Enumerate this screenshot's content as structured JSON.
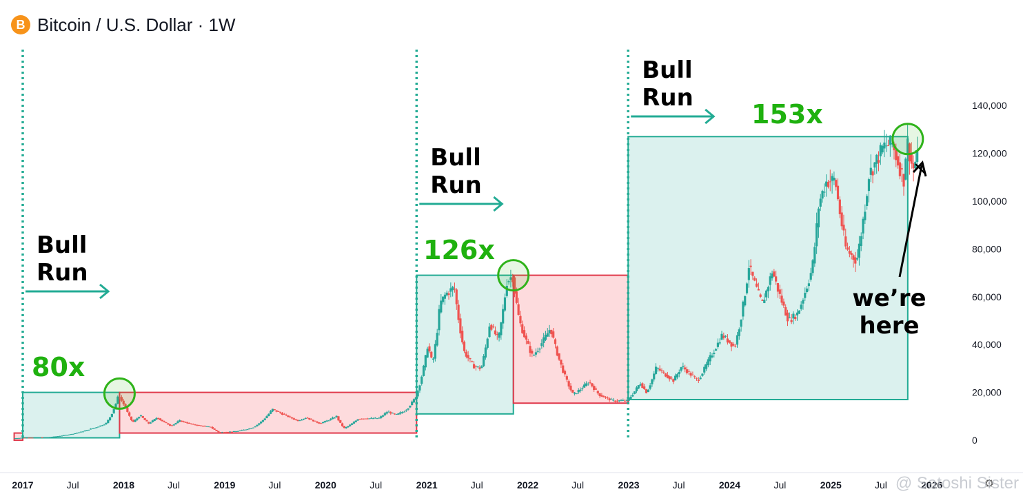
{
  "header": {
    "title": "Bitcoin / U.S. Dollar · 1W",
    "logo_glyph": "B",
    "logo_color": "#f7931a"
  },
  "watermark": "@ Satoshi Sister",
  "colors": {
    "bull": "#22ab94",
    "bull_fill": "rgba(34,171,148,0.16)",
    "bear": "#e03a4c",
    "bear_fill": "rgba(242,54,69,0.18)",
    "green_text": "#1fb10f",
    "circle": "#2fb31a"
  },
  "chart_data": {
    "type": "candlestick",
    "title": "Bitcoin / U.S. Dollar · 1W",
    "ylim": [
      -3000,
      147000
    ],
    "y_ticks": [
      0,
      20000,
      40000,
      60000,
      80000,
      100000,
      120000,
      140000
    ],
    "y_tick_labels": [
      "0",
      "20,000",
      "40,000",
      "60,000",
      "80,000",
      "100,000",
      "120,000",
      "140,000"
    ],
    "x_range": [
      "2017-01-01",
      "2026-02-28"
    ],
    "x_ticks": [
      {
        "date": "2017-01-01",
        "label": "2017",
        "bold": true
      },
      {
        "date": "2017-07-01",
        "label": "Jul",
        "bold": false
      },
      {
        "date": "2018-01-01",
        "label": "2018",
        "bold": true
      },
      {
        "date": "2018-07-01",
        "label": "Jul",
        "bold": false
      },
      {
        "date": "2019-01-01",
        "label": "2019",
        "bold": true
      },
      {
        "date": "2019-07-01",
        "label": "Jul",
        "bold": false
      },
      {
        "date": "2020-01-01",
        "label": "2020",
        "bold": true
      },
      {
        "date": "2020-07-01",
        "label": "Jul",
        "bold": false
      },
      {
        "date": "2021-01-01",
        "label": "2021",
        "bold": true
      },
      {
        "date": "2021-07-01",
        "label": "Jul",
        "bold": false
      },
      {
        "date": "2022-01-01",
        "label": "2022",
        "bold": true
      },
      {
        "date": "2022-07-01",
        "label": "Jul",
        "bold": false
      },
      {
        "date": "2023-01-01",
        "label": "2023",
        "bold": true
      },
      {
        "date": "2023-07-01",
        "label": "Jul",
        "bold": false
      },
      {
        "date": "2024-01-01",
        "label": "2024",
        "bold": true
      },
      {
        "date": "2024-07-01",
        "label": "Jul",
        "bold": false
      },
      {
        "date": "2025-01-01",
        "label": "2025",
        "bold": true
      },
      {
        "date": "2025-07-01",
        "label": "Jul",
        "bold": false
      },
      {
        "date": "2026-01-01",
        "label": "2026",
        "bold": true
      }
    ],
    "price_path": [
      [
        "2016-12-01",
        800
      ],
      [
        "2017-01-01",
        1000
      ],
      [
        "2017-04-01",
        1200
      ],
      [
        "2017-07-01",
        2600
      ],
      [
        "2017-09-01",
        4500
      ],
      [
        "2017-11-01",
        7000
      ],
      [
        "2017-12-17",
        19000
      ],
      [
        "2018-01-10",
        14000
      ],
      [
        "2018-02-06",
        7500
      ],
      [
        "2018-03-05",
        10500
      ],
      [
        "2018-04-05",
        7000
      ],
      [
        "2018-05-05",
        9500
      ],
      [
        "2018-06-25",
        6000
      ],
      [
        "2018-07-25",
        8200
      ],
      [
        "2018-09-15",
        6500
      ],
      [
        "2018-11-15",
        5500
      ],
      [
        "2018-12-15",
        3300
      ],
      [
        "2019-02-15",
        3700
      ],
      [
        "2019-04-15",
        5200
      ],
      [
        "2019-06-26",
        13000
      ],
      [
        "2019-08-15",
        10300
      ],
      [
        "2019-09-25",
        8200
      ],
      [
        "2019-10-27",
        9500
      ],
      [
        "2019-12-15",
        7000
      ],
      [
        "2020-02-13",
        10000
      ],
      [
        "2020-03-12",
        5000
      ],
      [
        "2020-05-01",
        9000
      ],
      [
        "2020-07-15",
        9200
      ],
      [
        "2020-08-15",
        12000
      ],
      [
        "2020-09-15",
        10600
      ],
      [
        "2020-10-20",
        12500
      ],
      [
        "2020-11-25",
        18000
      ],
      [
        "2021-01-08",
        40000
      ],
      [
        "2021-01-25",
        32000
      ],
      [
        "2021-02-21",
        57000
      ],
      [
        "2021-03-13",
        61000
      ],
      [
        "2021-04-14",
        64000
      ],
      [
        "2021-05-20",
        37000
      ],
      [
        "2021-06-22",
        31000
      ],
      [
        "2021-07-20",
        30000
      ],
      [
        "2021-08-20",
        49000
      ],
      [
        "2021-09-20",
        42000
      ],
      [
        "2021-10-20",
        66000
      ],
      [
        "2021-11-10",
        69000
      ],
      [
        "2021-12-05",
        50000
      ],
      [
        "2022-01-22",
        35000
      ],
      [
        "2022-03-28",
        47000
      ],
      [
        "2022-05-12",
        29000
      ],
      [
        "2022-06-18",
        19000
      ],
      [
        "2022-08-14",
        24500
      ],
      [
        "2022-09-20",
        19000
      ],
      [
        "2022-11-10",
        16500
      ],
      [
        "2022-12-30",
        16500
      ],
      [
        "2023-02-15",
        24000
      ],
      [
        "2023-03-10",
        20000
      ],
      [
        "2023-04-14",
        30500
      ],
      [
        "2023-06-15",
        25000
      ],
      [
        "2023-07-15",
        31000
      ],
      [
        "2023-09-11",
        25000
      ],
      [
        "2023-10-25",
        34500
      ],
      [
        "2023-12-08",
        44000
      ],
      [
        "2024-01-23",
        39000
      ],
      [
        "2024-03-14",
        73000
      ],
      [
        "2024-05-01",
        57000
      ],
      [
        "2024-06-07",
        71000
      ],
      [
        "2024-08-05",
        50000
      ],
      [
        "2024-09-06",
        53000
      ],
      [
        "2024-10-29",
        72000
      ],
      [
        "2024-11-22",
        99000
      ],
      [
        "2024-12-17",
        108000
      ],
      [
        "2025-01-20",
        109000
      ],
      [
        "2025-02-28",
        80000
      ],
      [
        "2025-04-08",
        75000
      ],
      [
        "2025-05-22",
        111000
      ],
      [
        "2025-07-14",
        123000
      ],
      [
        "2025-08-14",
        124000
      ],
      [
        "2025-09-25",
        109000
      ],
      [
        "2025-10-06",
        126000
      ],
      [
        "2025-10-28",
        113000
      ],
      [
        "2025-11-10",
        118000
      ]
    ],
    "zones": [
      {
        "kind": "bear",
        "start": "2016-12-01",
        "end": "2017-01-01",
        "low": 0,
        "high": 3000
      },
      {
        "kind": "bull",
        "start": "2017-01-01",
        "end": "2017-12-17",
        "low": 1000,
        "high": 20000,
        "multiplier": "80x"
      },
      {
        "kind": "bear",
        "start": "2017-12-17",
        "end": "2020-11-25",
        "low": 3000,
        "high": 20000
      },
      {
        "kind": "bull",
        "start": "2020-11-25",
        "end": "2021-11-10",
        "low": 11000,
        "high": 69000,
        "multiplier": "126x"
      },
      {
        "kind": "bear",
        "start": "2021-11-10",
        "end": "2022-12-30",
        "low": 15500,
        "high": 69000
      },
      {
        "kind": "bull",
        "start": "2022-12-30",
        "end": "2025-10-06",
        "low": 17000,
        "high": 127000,
        "multiplier": "153x"
      }
    ],
    "bull_run_markers": [
      {
        "date": "2017-01-01",
        "label_line1": "Bull",
        "label_line2": "Run"
      },
      {
        "date": "2020-11-25",
        "label_line1": "Bull",
        "label_line2": "Run"
      },
      {
        "date": "2022-12-30",
        "label_line1": "Bull",
        "label_line2": "Run"
      }
    ],
    "peak_circles": [
      {
        "date": "2017-12-17",
        "price": 19500
      },
      {
        "date": "2021-11-10",
        "price": 69000
      },
      {
        "date": "2025-10-06",
        "price": 126000
      }
    ],
    "annotation": {
      "line1": "we’re",
      "line2": "here",
      "date": "2025-10-28",
      "price": 117000
    }
  }
}
